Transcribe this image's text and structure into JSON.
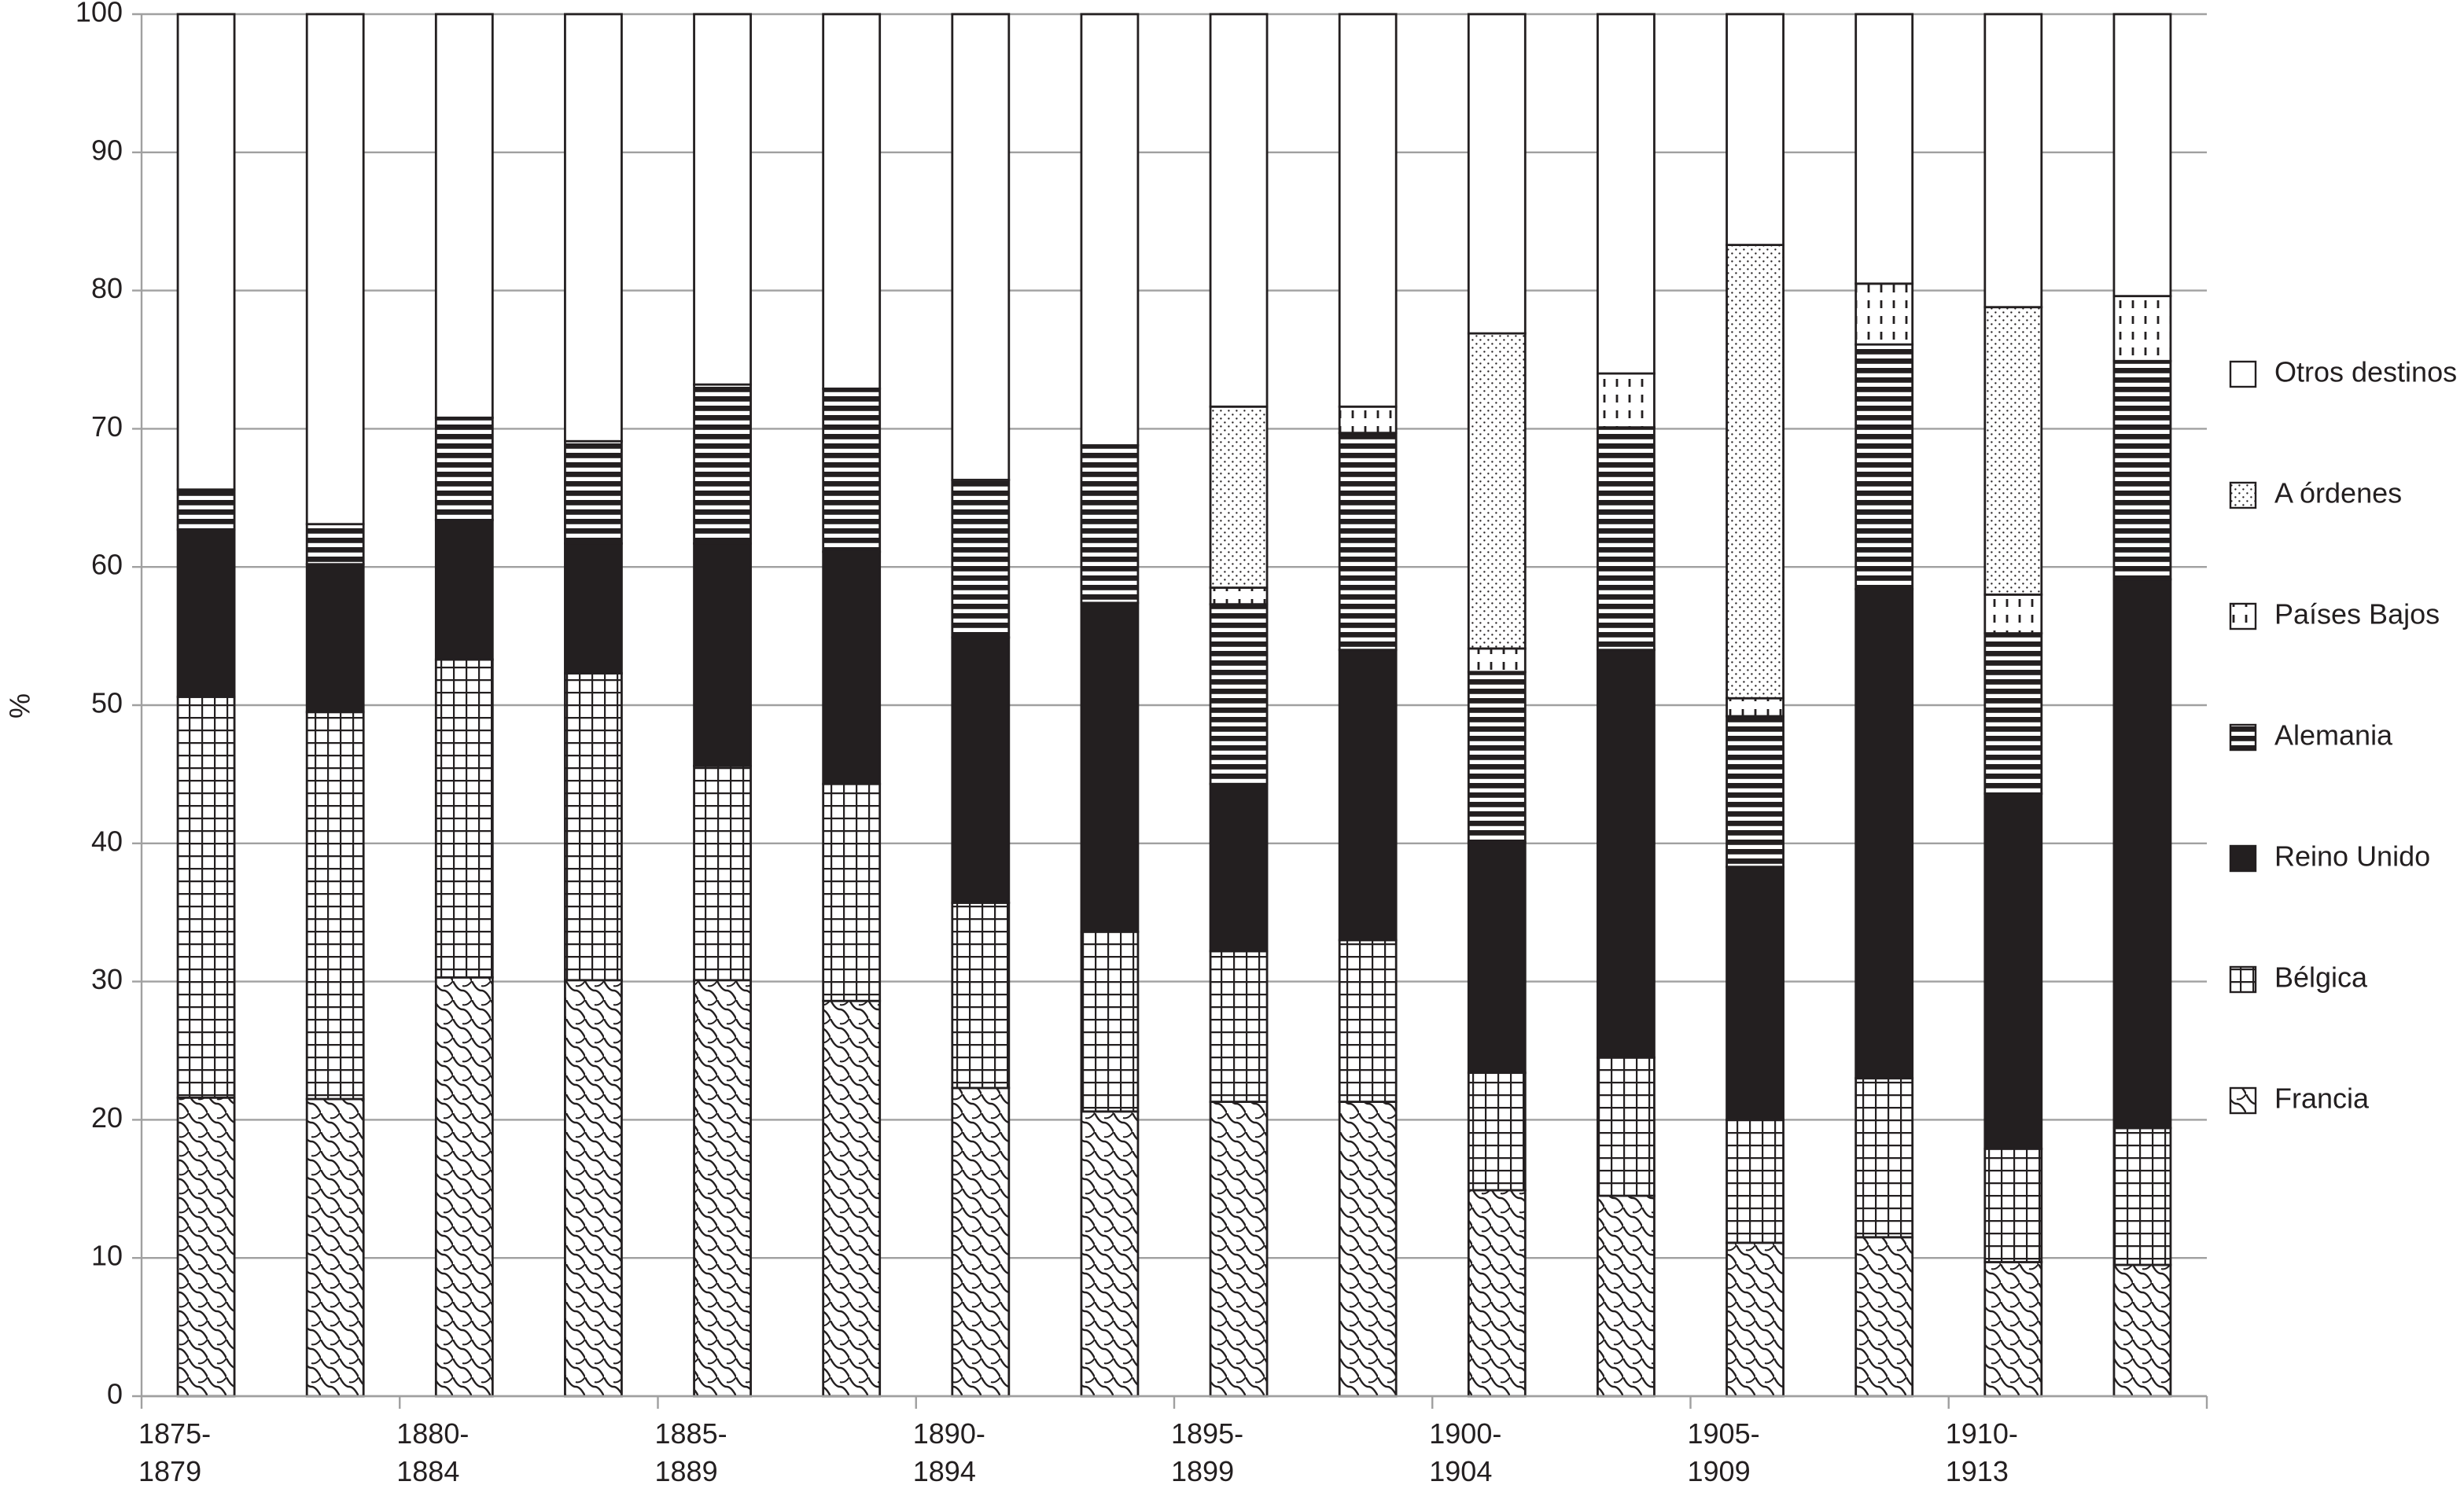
{
  "chart_data": {
    "type": "stacked-bar",
    "y_label": "%",
    "categories": [
      "1875-1879",
      null,
      "1880-1884",
      null,
      "1885-1889",
      null,
      "1890-1894",
      null,
      "1895-1899",
      null,
      "1900-1904",
      null,
      "1905-1909",
      null,
      "1910-1913",
      null
    ],
    "ylim": [
      0,
      100
    ],
    "yticks": [
      0,
      10,
      20,
      30,
      40,
      50,
      60,
      70,
      80,
      90,
      100
    ],
    "grid": true,
    "legend": "right",
    "series": [
      {
        "name": "Francia",
        "color": "#231f20",
        "pattern": "waves",
        "values": [
          21.6,
          21.5,
          30.3,
          30.1,
          30.1,
          28.6,
          22.3,
          20.6,
          21.3,
          21.3,
          14.9,
          14.5,
          11.1,
          11.5,
          9.7,
          9.5
        ]
      },
      {
        "name": "Bélgica",
        "color": "#231f20",
        "pattern": "grid",
        "values": [
          29.0,
          28.0,
          23.0,
          22.2,
          15.5,
          15.7,
          13.4,
          13.0,
          10.9,
          11.7,
          8.5,
          10.0,
          8.9,
          11.5,
          8.2,
          9.9
        ]
      },
      {
        "name": "Reino Unido",
        "color": "#231f20",
        "pattern": "solid",
        "values": [
          12.1,
          10.7,
          10.1,
          9.4,
          16.1,
          16.8,
          19.2,
          23.8,
          12.1,
          21.0,
          16.7,
          29.5,
          18.3,
          35.4,
          25.7,
          39.7
        ]
      },
      {
        "name": "Alemania",
        "color": "#231f20",
        "pattern": "hlines",
        "values": [
          2.9,
          2.9,
          7.4,
          7.4,
          11.5,
          11.8,
          11.4,
          11.4,
          13.0,
          15.7,
          12.3,
          16.1,
          10.9,
          17.7,
          11.6,
          15.8
        ]
      },
      {
        "name": "Países Bajos",
        "color": "#231f20",
        "pattern": "vdash",
        "values": [
          0,
          0,
          0,
          0,
          0,
          0,
          0,
          0,
          1.2,
          1.9,
          1.7,
          3.9,
          1.3,
          4.4,
          2.8,
          4.7
        ]
      },
      {
        "name": "A órdenes",
        "color": "#231f20",
        "pattern": "dots",
        "values": [
          0,
          0,
          0,
          0,
          0,
          0,
          0,
          0,
          13.1,
          0,
          22.8,
          0,
          32.8,
          0,
          20.8,
          0
        ]
      },
      {
        "name": "Otros destinos",
        "color": "#231f20",
        "pattern": "none",
        "values": [
          34.4,
          36.9,
          29.2,
          30.9,
          26.8,
          27.1,
          33.7,
          31.2,
          28.4,
          28.4,
          23.1,
          26.0,
          16.7,
          19.5,
          21.2,
          20.4
        ]
      }
    ]
  }
}
